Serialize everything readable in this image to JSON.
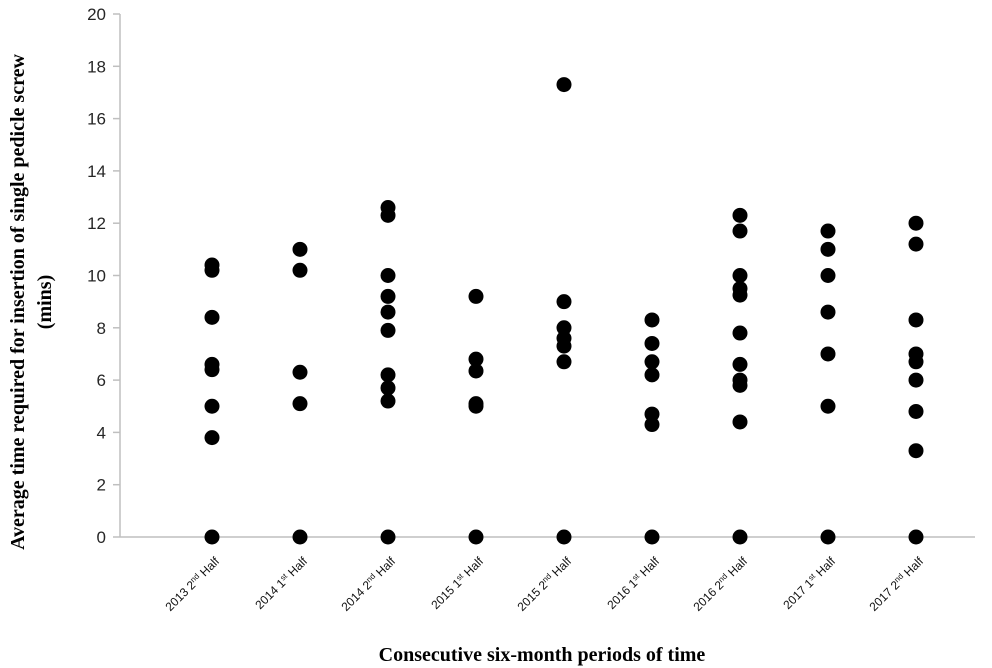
{
  "chart_data": {
    "type": "scatter",
    "xlabel": "Consecutive six-month periods of time",
    "ylabel_lines": [
      "Average time required for insertion of single pedicle screw",
      "(mins)"
    ],
    "ylim": [
      0,
      20
    ],
    "ytick_step": 2,
    "grid": false,
    "categories": [
      {
        "year": "2013",
        "ordinal": "2",
        "suffix": "nd",
        "half": "Half"
      },
      {
        "year": "2014",
        "ordinal": "1",
        "suffix": "st",
        "half": "Half"
      },
      {
        "year": "2014",
        "ordinal": "2",
        "suffix": "nd",
        "half": "Half"
      },
      {
        "year": "2015",
        "ordinal": "1",
        "suffix": "st",
        "half": "Half"
      },
      {
        "year": "2015",
        "ordinal": "2",
        "suffix": "nd",
        "half": "Half"
      },
      {
        "year": "2016",
        "ordinal": "1",
        "suffix": "st",
        "half": "Half"
      },
      {
        "year": "2016",
        "ordinal": "2",
        "suffix": "nd",
        "half": "Half"
      },
      {
        "year": "2017",
        "ordinal": "1",
        "suffix": "st",
        "half": "Half"
      },
      {
        "year": "2017",
        "ordinal": "2",
        "suffix": "nd",
        "half": "Half"
      }
    ],
    "values": [
      [
        10.4,
        10.2,
        8.4,
        6.6,
        6.4,
        5.0,
        3.8,
        0
      ],
      [
        11.0,
        10.2,
        6.3,
        5.1,
        0
      ],
      [
        12.6,
        12.3,
        10.0,
        9.2,
        8.6,
        7.9,
        6.2,
        5.7,
        5.2,
        0
      ],
      [
        9.2,
        6.8,
        6.35,
        5.1,
        5.0,
        0
      ],
      [
        17.3,
        9.0,
        8.0,
        7.6,
        7.3,
        6.7,
        0
      ],
      [
        8.3,
        7.4,
        6.7,
        6.2,
        4.7,
        4.3,
        0
      ],
      [
        12.3,
        11.7,
        10.0,
        9.5,
        9.25,
        7.8,
        6.6,
        6.0,
        5.8,
        4.4,
        0
      ],
      [
        11.7,
        11.0,
        10.0,
        8.6,
        7.0,
        5.0,
        0
      ],
      [
        12.0,
        11.2,
        8.3,
        7.0,
        6.7,
        6.0,
        4.8,
        3.3,
        0
      ]
    ],
    "marker_color": "#000000",
    "axis_color": "#bfbfbf"
  }
}
